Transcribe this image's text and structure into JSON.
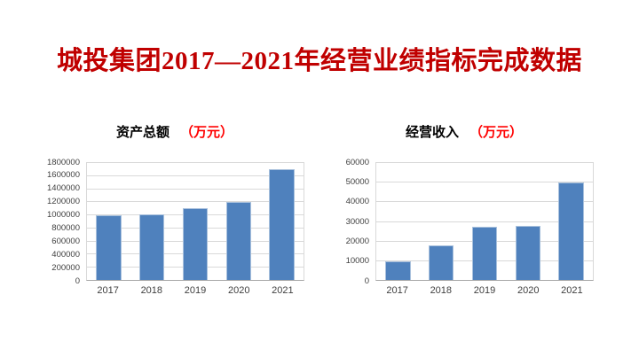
{
  "slide_title": "城投集团2017—2021年经营业绩指标完成数据",
  "chart_data": [
    {
      "type": "bar",
      "title": "资产总额",
      "unit_label": "（万元）",
      "categories": [
        "2017",
        "2018",
        "2019",
        "2020",
        "2021"
      ],
      "values": [
        990000,
        995000,
        1100000,
        1190000,
        1690000
      ],
      "xlabel": "",
      "ylabel": "",
      "ylim": [
        0,
        1800000
      ],
      "ytick_step": 200000,
      "yticks": [
        0,
        200000,
        400000,
        600000,
        800000,
        1000000,
        1200000,
        1400000,
        1600000,
        1800000
      ],
      "grid": true,
      "legend": "none"
    },
    {
      "type": "bar",
      "title": "经营收入",
      "unit_label": "（万元）",
      "categories": [
        "2017",
        "2018",
        "2019",
        "2020",
        "2021"
      ],
      "values": [
        9500,
        17500,
        27000,
        27500,
        49500
      ],
      "xlabel": "",
      "ylabel": "",
      "ylim": [
        0,
        60000
      ],
      "ytick_step": 10000,
      "yticks": [
        0,
        10000,
        20000,
        30000,
        40000,
        50000,
        60000
      ],
      "grid": true,
      "legend": "none"
    }
  ],
  "colors": {
    "slide_title": "#c00000",
    "unit_label": "#ff0000",
    "bar_fill": "#4f81bd",
    "bar_border": "#a9c1dd",
    "gridline": "#d9d9d9",
    "axis_line": "#a6a6a6",
    "tick_text": "#404040"
  }
}
